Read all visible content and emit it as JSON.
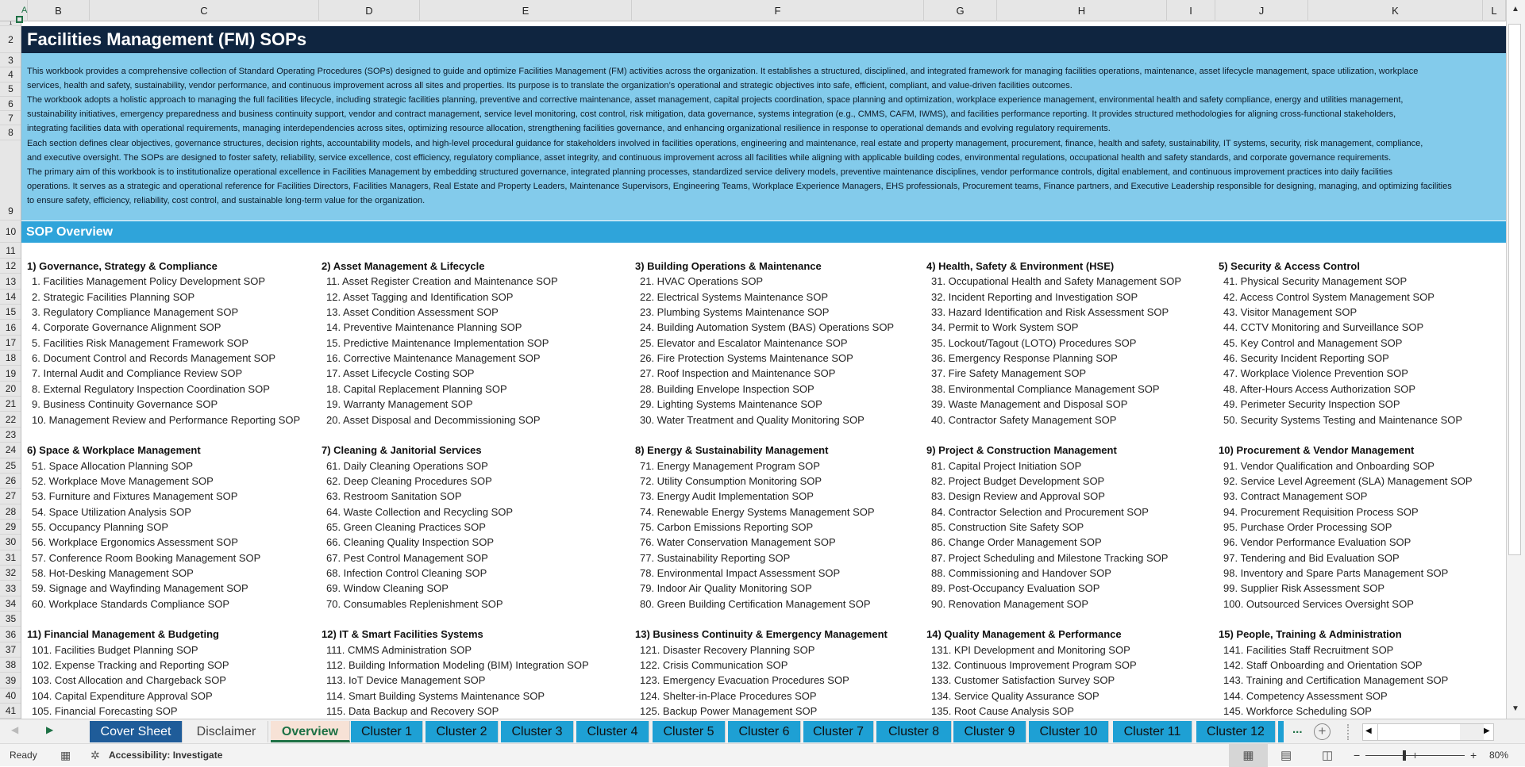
{
  "sheet": {
    "column_letters": [
      "A",
      "B",
      "C",
      "D",
      "E",
      "F",
      "G",
      "H",
      "I",
      "J",
      "K",
      "L"
    ],
    "row_numbers": [
      1,
      2,
      3,
      4,
      5,
      6,
      7,
      8,
      9,
      10,
      11,
      12,
      13,
      14,
      15,
      16,
      17,
      18,
      19,
      20,
      21,
      22,
      23,
      24,
      25,
      26,
      27,
      28,
      29,
      30,
      31,
      32,
      33,
      34,
      35,
      36,
      37,
      38,
      39,
      40,
      41
    ]
  },
  "title": "Facilities Management (FM) SOPs",
  "description_lines": [
    "This workbook provides a comprehensive collection of Standard Operating Procedures (SOPs) designed to guide and optimize Facilities Management (FM) activities across the organization. It establishes a structured, disciplined, and integrated framework for managing facilities operations, maintenance, asset lifecycle management, space utilization, workplace",
    "services, health and safety, sustainability, vendor performance, and continuous improvement across all sites and properties. Its purpose is to translate the organization’s operational and strategic objectives into safe, efficient, compliant, and value-driven facilities outcomes.",
    "The workbook adopts a holistic approach to managing the full facilities lifecycle, including strategic facilities planning, preventive and corrective maintenance, asset management, capital projects coordination, space planning and optimization, workplace experience management, environmental health and safety compliance, energy and utilities management,",
    "sustainability initiatives, emergency preparedness and business continuity support, vendor and contract management, service level monitoring, cost control, risk mitigation, data governance, systems integration (e.g., CMMS, CAFM, IWMS), and facilities performance reporting. It provides structured methodologies for aligning cross-functional stakeholders,",
    "integrating facilities data with operational requirements, managing interdependencies across sites, optimizing resource allocation, strengthening facilities governance, and enhancing organizational resilience in response to operational demands and evolving regulatory requirements.",
    "Each section defines clear objectives, governance structures, decision rights, accountability models, and high-level procedural guidance for stakeholders involved in facilities operations, engineering and maintenance, real estate and property management, procurement, finance, health and safety, sustainability, IT systems, security, risk management, compliance,",
    "and executive oversight. The SOPs are designed to foster safety, reliability, service excellence, cost efficiency, regulatory compliance, asset integrity, and continuous improvement across all facilities while aligning with applicable building codes, environmental regulations, occupational health and safety standards, and corporate governance requirements.",
    "The primary aim of this workbook is to institutionalize operational excellence in Facilities Management by embedding structured governance, integrated planning processes, standardized service delivery models, preventive maintenance disciplines, vendor performance controls, digital enablement, and continuous improvement practices into daily facilities",
    "operations. It serves as a strategic and operational reference for Facilities Directors, Facilities Managers, Real Estate and Property Leaders, Maintenance Supervisors, Engineering Teams, Workplace Experience Managers, EHS professionals, Procurement teams, Finance partners, and Executive Leadership responsible for designing, managing, and optimizing facilities",
    "to ensure safety, efficiency, reliability, cost control, and sustainable long-term value for the organization."
  ],
  "overview_heading": "SOP Overview",
  "sections": [
    {
      "title": "1) Governance, Strategy & Compliance",
      "items": [
        "1. Facilities Management Policy Development SOP",
        "2. Strategic Facilities Planning SOP",
        "3. Regulatory Compliance Management SOP",
        "4. Corporate Governance Alignment SOP",
        "5. Facilities Risk Management Framework SOP",
        "6. Document Control and Records Management SOP",
        "7. Internal Audit and Compliance Review SOP",
        "8. External Regulatory Inspection Coordination SOP",
        "9. Business Continuity Governance SOP",
        "10. Management Review and Performance Reporting SOP"
      ]
    },
    {
      "title": "2) Asset Management & Lifecycle",
      "items": [
        "11. Asset Register Creation and Maintenance SOP",
        "12. Asset Tagging and Identification SOP",
        "13. Asset Condition Assessment SOP",
        "14. Preventive Maintenance Planning SOP",
        "15. Predictive Maintenance Implementation SOP",
        "16. Corrective Maintenance Management SOP",
        "17. Asset Lifecycle Costing SOP",
        "18. Capital Replacement Planning SOP",
        "19. Warranty Management SOP",
        "20. Asset Disposal and Decommissioning SOP"
      ]
    },
    {
      "title": "3) Building Operations & Maintenance",
      "items": [
        "21. HVAC Operations SOP",
        "22. Electrical Systems Maintenance SOP",
        "23. Plumbing Systems Maintenance SOP",
        "24. Building Automation System (BAS) Operations SOP",
        "25. Elevator and Escalator Maintenance SOP",
        "26. Fire Protection Systems Maintenance SOP",
        "27. Roof Inspection and Maintenance SOP",
        "28. Building Envelope Inspection SOP",
        "29. Lighting Systems Maintenance SOP",
        "30. Water Treatment and Quality Monitoring SOP"
      ]
    },
    {
      "title": "4) Health, Safety & Environment (HSE)",
      "items": [
        "31. Occupational Health and Safety Management SOP",
        "32. Incident Reporting and Investigation SOP",
        "33. Hazard Identification and Risk Assessment SOP",
        "34. Permit to Work System SOP",
        "35. Lockout/Tagout (LOTO) Procedures SOP",
        "36. Emergency Response Planning SOP",
        "37. Fire Safety Management SOP",
        "38. Environmental Compliance Management SOP",
        "39. Waste Management and Disposal SOP",
        "40. Contractor Safety Management SOP"
      ]
    },
    {
      "title": "5) Security & Access Control",
      "items": [
        "41. Physical Security Management SOP",
        "42. Access Control System Management SOP",
        "43. Visitor Management SOP",
        "44. CCTV Monitoring and Surveillance SOP",
        "45. Key Control and Management SOP",
        "46. Security Incident Reporting SOP",
        "47. Workplace Violence Prevention SOP",
        "48. After-Hours Access Authorization SOP",
        "49. Perimeter Security Inspection SOP",
        "50. Security Systems Testing and Maintenance SOP"
      ]
    },
    {
      "title": "6) Space & Workplace Management",
      "items": [
        "51. Space Allocation Planning SOP",
        "52. Workplace Move Management SOP",
        "53. Furniture and Fixtures Management SOP",
        "54. Space Utilization Analysis SOP",
        "55. Occupancy Planning SOP",
        "56. Workplace Ergonomics Assessment SOP",
        "57. Conference Room Booking Management SOP",
        "58. Hot-Desking Management SOP",
        "59. Signage and Wayfinding Management SOP",
        "60. Workplace Standards Compliance SOP"
      ]
    },
    {
      "title": "7) Cleaning & Janitorial Services",
      "items": [
        "61. Daily Cleaning Operations SOP",
        "62. Deep Cleaning Procedures SOP",
        "63. Restroom Sanitation SOP",
        "64. Waste Collection and Recycling SOP",
        "65. Green Cleaning Practices SOP",
        "66. Cleaning Quality Inspection SOP",
        "67. Pest Control Management SOP",
        "68. Infection Control Cleaning SOP",
        "69. Window Cleaning SOP",
        "70. Consumables Replenishment SOP"
      ]
    },
    {
      "title": "8) Energy & Sustainability Management",
      "items": [
        "71. Energy Management Program SOP",
        "72. Utility Consumption Monitoring SOP",
        "73. Energy Audit Implementation SOP",
        "74. Renewable Energy Systems Management SOP",
        "75. Carbon Emissions Reporting SOP",
        "76. Water Conservation Management SOP",
        "77. Sustainability Reporting SOP",
        "78. Environmental Impact Assessment SOP",
        "79. Indoor Air Quality Monitoring SOP",
        "80. Green Building Certification Management SOP"
      ]
    },
    {
      "title": "9) Project & Construction Management",
      "items": [
        "81. Capital Project Initiation SOP",
        "82. Project Budget Development SOP",
        "83. Design Review and Approval SOP",
        "84. Contractor Selection and Procurement SOP",
        "85. Construction Site Safety SOP",
        "86. Change Order Management SOP",
        "87. Project Scheduling and Milestone Tracking SOP",
        "88. Commissioning and Handover SOP",
        "89. Post-Occupancy Evaluation SOP",
        "90. Renovation Management SOP"
      ]
    },
    {
      "title": "10) Procurement & Vendor Management",
      "items": [
        "91. Vendor Qualification and Onboarding SOP",
        "92. Service Level Agreement (SLA) Management SOP",
        "93. Contract Management SOP",
        "94. Procurement Requisition Process SOP",
        "95. Purchase Order Processing SOP",
        "96. Vendor Performance Evaluation SOP",
        "97. Tendering and Bid Evaluation SOP",
        "98. Inventory and Spare Parts Management SOP",
        "99. Supplier Risk Assessment SOP",
        "100. Outsourced Services Oversight SOP"
      ]
    },
    {
      "title": "11) Financial Management & Budgeting",
      "items": [
        "101. Facilities Budget Planning SOP",
        "102. Expense Tracking and Reporting SOP",
        "103. Cost Allocation and Chargeback SOP",
        "104. Capital Expenditure Approval SOP",
        "105. Financial Forecasting SOP"
      ]
    },
    {
      "title": "12) IT & Smart Facilities Systems",
      "items": [
        "111. CMMS Administration SOP",
        "112. Building Information Modeling (BIM) Integration SOP",
        "113. IoT Device Management SOP",
        "114. Smart Building Systems Maintenance SOP",
        "115. Data Backup and Recovery SOP"
      ]
    },
    {
      "title": "13) Business Continuity & Emergency Management",
      "items": [
        "121. Disaster Recovery Planning SOP",
        "122. Crisis Communication SOP",
        "123. Emergency Evacuation Procedures SOP",
        "124. Shelter-in-Place Procedures SOP",
        "125. Backup Power Management SOP"
      ]
    },
    {
      "title": "14) Quality Management & Performance",
      "items": [
        "131. KPI Development and Monitoring SOP",
        "132. Continuous Improvement Program SOP",
        "133. Customer Satisfaction Survey SOP",
        "134. Service Quality Assurance SOP",
        "135. Root Cause Analysis SOP"
      ]
    },
    {
      "title": "15) People, Training & Administration",
      "items": [
        "141. Facilities Staff Recruitment SOP",
        "142. Staff Onboarding and Orientation SOP",
        "143. Training and Certification Management SOP",
        "144. Competency Assessment SOP",
        "145. Workforce Scheduling SOP"
      ]
    }
  ],
  "tabs": [
    "Cover Sheet",
    "Disclaimer",
    "Overview",
    "Cluster 1",
    "Cluster 2",
    "Cluster 3",
    "Cluster 4",
    "Cluster 5",
    "Cluster 6",
    "Cluster 7",
    "Cluster 8",
    "Cluster 9",
    "Cluster 10",
    "Cluster 11",
    "Cluster 12"
  ],
  "active_tab": "Overview",
  "tab_more": "...",
  "tab_add": "+",
  "status": {
    "ready": "Ready",
    "accessibility": "Accessibility: Investigate",
    "zoom_minus": "−",
    "zoom_plus": "+",
    "zoom": "80%",
    "zoom_percent": 80
  },
  "colors": {
    "title_bg": "#0f2540",
    "description_bg": "#83cbeb",
    "overview_band": "#2fa4da",
    "cluster_tab": "#1ea0d4",
    "cover_tab": "#1f5c99",
    "active_tab_text": "#1e7145"
  }
}
